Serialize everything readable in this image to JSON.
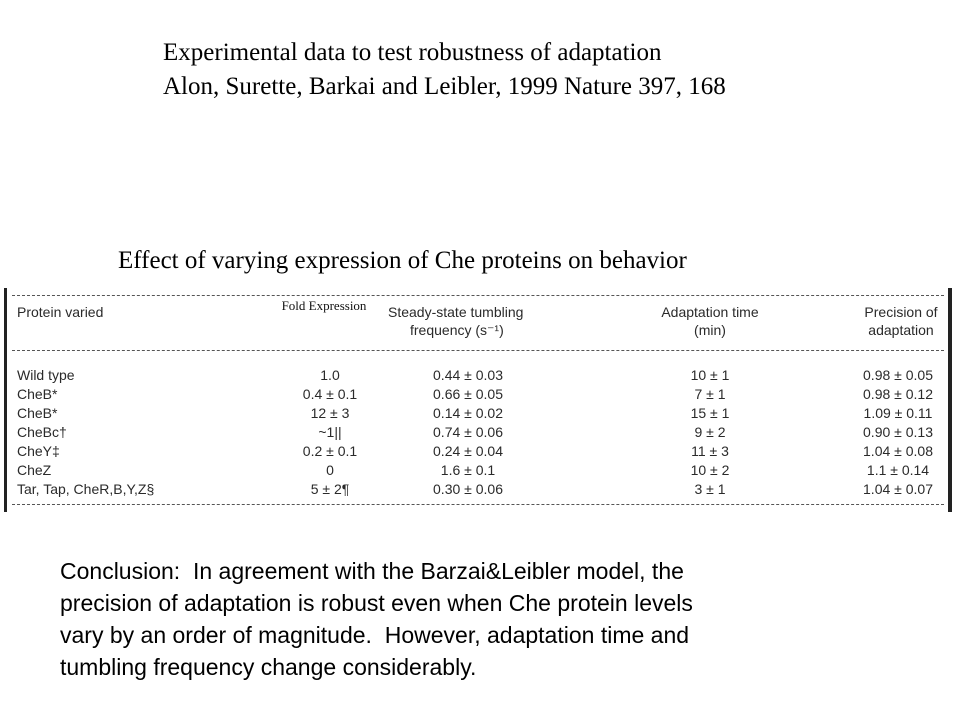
{
  "header": {
    "title_line1": "Experimental data to test robustness of adaptation",
    "title_line2": "Alon, Surette, Barkai and Leibler, 1999 Nature 397, 168"
  },
  "subtitle": "Effect of varying expression of Che proteins on behavior",
  "table": {
    "headers": {
      "protein": "Protein varied",
      "fold": "Fold Expression",
      "tumble_line1": "Steady-state tumbling",
      "tumble_line2": "frequency (s⁻¹)",
      "adapt_line1": "Adaptation time",
      "adapt_line2": "(min)",
      "prec_line1": "Precision of",
      "prec_line2": "adaptation"
    },
    "rows": [
      {
        "protein": "Wild type",
        "fold": "1.0",
        "tumble": "0.44 ± 0.03",
        "adapt": "10 ± 1",
        "prec": "0.98 ± 0.05"
      },
      {
        "protein": "CheB*",
        "fold": "0.4 ± 0.1",
        "tumble": "0.66 ± 0.05",
        "adapt": "7 ± 1",
        "prec": "0.98 ± 0.12"
      },
      {
        "protein": "CheB*",
        "fold": "12 ± 3",
        "tumble": "0.14 ± 0.02",
        "adapt": "15 ± 1",
        "prec": "1.09 ± 0.11"
      },
      {
        "protein": "CheBc†",
        "fold": "~1||",
        "tumble": "0.74 ± 0.06",
        "adapt": "9 ± 2",
        "prec": "0.90 ± 0.13"
      },
      {
        "protein": "CheY‡",
        "fold": "0.2 ± 0.1",
        "tumble": "0.24 ± 0.04",
        "adapt": "11 ± 3",
        "prec": "1.04 ± 0.08"
      },
      {
        "protein": "CheZ",
        "fold": "0",
        "tumble": "1.6 ± 0.1",
        "adapt": "10 ± 2",
        "prec": "1.1 ± 0.14"
      },
      {
        "protein": "Tar, Tap, CheR,B,Y,Z§",
        "fold": "5 ± 2¶",
        "tumble": "0.30 ± 0.06",
        "adapt": "3 ± 1",
        "prec": "1.04 ± 0.07"
      }
    ]
  },
  "conclusion": {
    "line1": "Conclusion:  In agreement with the Barzai&Leibler model, the",
    "line2": "precision of adaptation is robust even when Che protein levels",
    "line3": "vary by an order of magnitude.  However, adaptation time and",
    "line4": "tumbling frequency change considerably."
  }
}
